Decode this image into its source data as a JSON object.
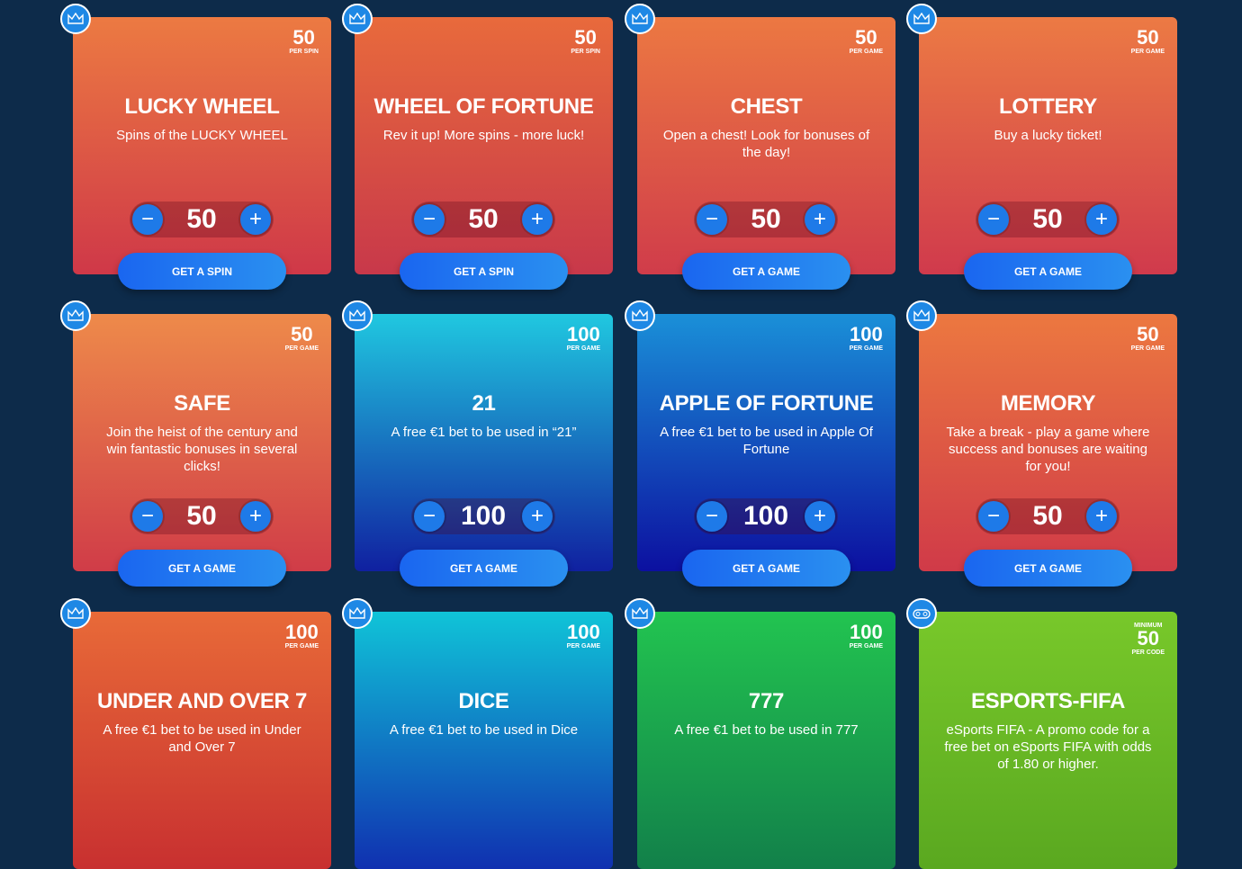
{
  "cards": [
    {
      "title": "LUCKY WHEEL",
      "desc": "Spins of the LUCKY WHEEL",
      "price": "50",
      "unit": "PER SPIN",
      "qty": "50",
      "button": "GET A SPIN",
      "icon": "crown-icon",
      "colors": [
        "#ec7a42",
        "#cf3848"
      ]
    },
    {
      "title": "WHEEL OF FORTUNE",
      "desc": "Rev it up! More spins - more luck!",
      "price": "50",
      "unit": "PER SPIN",
      "qty": "50",
      "button": "GET A SPIN",
      "icon": "crown-icon",
      "colors": [
        "#e86a3c",
        "#c8384a"
      ]
    },
    {
      "title": "CHEST",
      "desc": "Open a chest! Look for bonuses of the day!",
      "price": "50",
      "unit": "PER GAME",
      "qty": "50",
      "button": "GET A GAME",
      "icon": "crown-icon",
      "colors": [
        "#ec7842",
        "#d03c4a"
      ]
    },
    {
      "title": "LOTTERY",
      "desc": "Buy a lucky ticket!",
      "price": "50",
      "unit": "PER GAME",
      "qty": "50",
      "button": "GET A GAME",
      "icon": "crown-icon",
      "colors": [
        "#ec7a44",
        "#d03a4c"
      ]
    },
    {
      "title": "SAFE",
      "desc": "Join the heist of the century and win fantastic bonuses in several clicks!",
      "price": "50",
      "unit": "PER GAME",
      "qty": "50",
      "button": "GET A GAME",
      "icon": "crown-icon",
      "colors": [
        "#ee8a4a",
        "#d03c48"
      ]
    },
    {
      "title": "21",
      "desc": "A free €1 bet to be used in “21”",
      "price": "100",
      "unit": "PER GAME",
      "qty": "100",
      "button": "GET A GAME",
      "icon": "crown-icon",
      "colors": [
        "#20c8e0",
        "#1020a0"
      ]
    },
    {
      "title": "APPLE OF FORTUNE",
      "desc": "A free €1 bet to be used in Apple Of Fortune",
      "price": "100",
      "unit": "PER GAME",
      "qty": "100",
      "button": "GET A GAME",
      "icon": "crown-icon",
      "colors": [
        "#1a90d8",
        "#0c10a0"
      ]
    },
    {
      "title": "MEMORY",
      "desc": "Take a break - play a game where success and bonuses are waiting for you!",
      "price": "50",
      "unit": "PER GAME",
      "qty": "50",
      "button": "GET A GAME",
      "icon": "crown-icon",
      "colors": [
        "#ec7840",
        "#d03a48"
      ]
    },
    {
      "title": "UNDER AND OVER 7",
      "desc": "A free €1 bet to be used in Under and Over 7",
      "price": "100",
      "unit": "PER GAME",
      "icon": "crown-icon",
      "colors": [
        "#e86a38",
        "#c83030"
      ]
    },
    {
      "title": "DICE",
      "desc": "A free €1 bet to be used in Dice",
      "price": "100",
      "unit": "PER GAME",
      "icon": "crown-icon",
      "colors": [
        "#10c4d8",
        "#1030b0"
      ]
    },
    {
      "title": "777",
      "desc": "A free €1 bet to be used in 777",
      "price": "100",
      "unit": "PER GAME",
      "icon": "crown-icon",
      "colors": [
        "#22c450",
        "#12804a"
      ]
    },
    {
      "title": "ESPORTS-FIFA",
      "desc": "eSports FIFA - A promo code for a free bet on eSports FIFA with odds of 1.80 or higher.",
      "min": "MINIMUM",
      "price": "50",
      "unit": "PER CODE",
      "icon": "gamepad-icon",
      "colors": [
        "#78c82a",
        "#5aa820"
      ]
    }
  ]
}
